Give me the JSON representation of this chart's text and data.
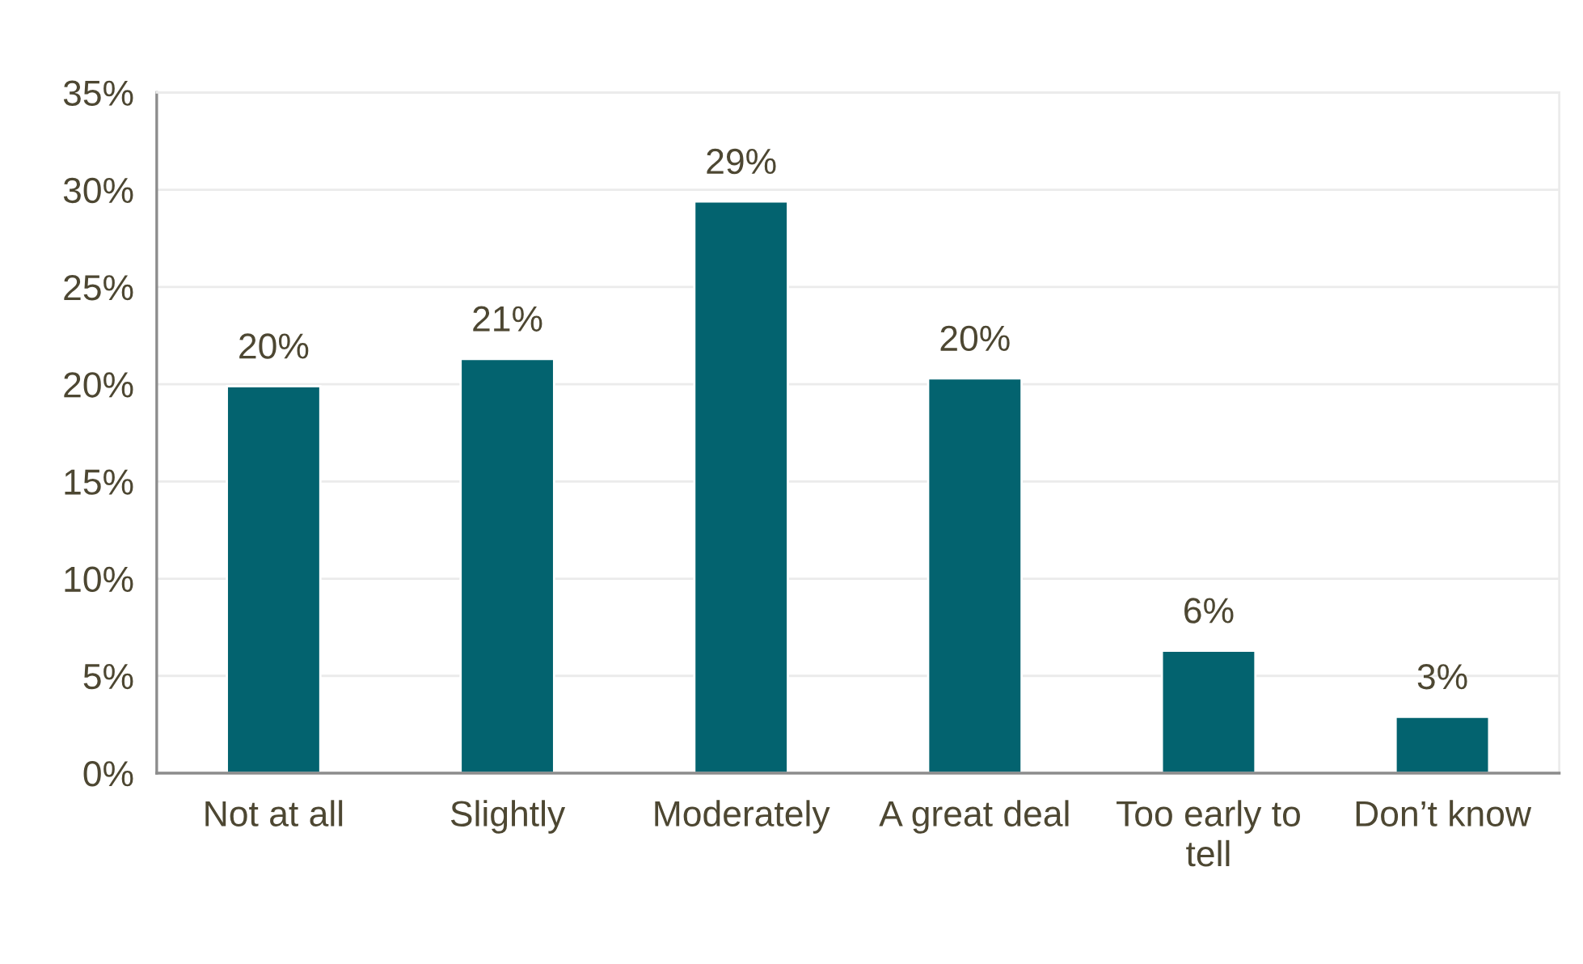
{
  "chart_data": {
    "type": "bar",
    "categories": [
      "Not at all",
      "Slightly",
      "Moderately",
      "A great deal",
      "Too early to tell",
      "Don’t know"
    ],
    "values": [
      19.9,
      21.3,
      29.4,
      20.3,
      6.3,
      2.9
    ],
    "value_labels": [
      "20%",
      "21%",
      "29%",
      "20%",
      "6%",
      "3%"
    ],
    "color": "#03636f",
    "ylim": [
      0,
      35
    ],
    "yticks": [
      {
        "value": 0,
        "label": "0%"
      },
      {
        "value": 5,
        "label": "5%"
      },
      {
        "value": 10,
        "label": "10%"
      },
      {
        "value": 15,
        "label": "15%"
      },
      {
        "value": 20,
        "label": "20%"
      },
      {
        "value": 25,
        "label": "25%"
      },
      {
        "value": 30,
        "label": "30%"
      },
      {
        "value": 35,
        "label": "35%"
      }
    ],
    "grid": "y"
  }
}
